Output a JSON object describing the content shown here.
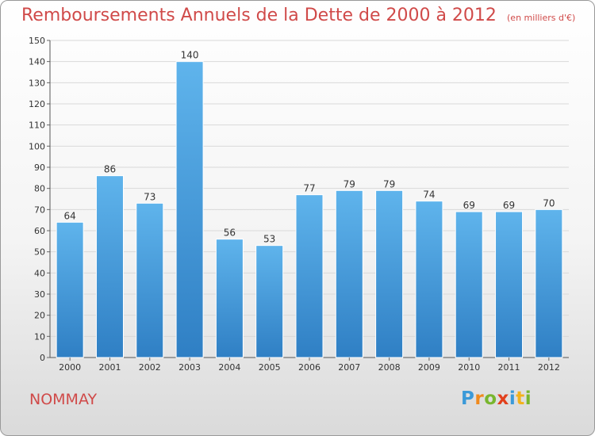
{
  "header": {
    "title": "Remboursements Annuels de la Dette de 2000 à 2012",
    "unit": "(en milliers d'€)"
  },
  "location": "NOMMAY",
  "logo": {
    "text": "Proxiti",
    "letters": [
      {
        "ch": "P",
        "color": "#3b9ad8"
      },
      {
        "ch": "r",
        "color": "#f08a1d"
      },
      {
        "ch": "o",
        "color": "#78b62e"
      },
      {
        "ch": "x",
        "color": "#e2401c"
      },
      {
        "ch": "i",
        "color": "#3b9ad8"
      },
      {
        "ch": "t",
        "color": "#f2b21b"
      },
      {
        "ch": "i",
        "color": "#78b62e"
      }
    ]
  },
  "colors": {
    "title": "#d04a49",
    "bar_top": "#5fb4ec",
    "bar_bottom": "#2f7fc4",
    "grid": "#d9d9d9"
  },
  "chart_data": {
    "type": "bar",
    "categories": [
      "2000",
      "2001",
      "2002",
      "2003",
      "2004",
      "2005",
      "2006",
      "2007",
      "2008",
      "2009",
      "2010",
      "2011",
      "2012"
    ],
    "values": [
      64,
      86,
      73,
      140,
      56,
      53,
      77,
      79,
      79,
      74,
      69,
      69,
      70
    ],
    "title": "Remboursements Annuels de la Dette de 2000 à 2012",
    "ylim": [
      0,
      150
    ],
    "yticks": [
      0,
      10,
      20,
      30,
      40,
      50,
      60,
      70,
      80,
      90,
      100,
      110,
      120,
      130,
      140,
      150
    ],
    "grid": true,
    "show_value_labels": true
  }
}
